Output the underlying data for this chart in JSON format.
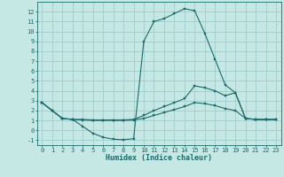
{
  "xlabel": "Humidex (Indice chaleur)",
  "background_color": "#c5e8e5",
  "grid_color": "#a0cccc",
  "line_color": "#1a6b6b",
  "xlim": [
    -0.5,
    23.5
  ],
  "ylim": [
    -1.5,
    13.0
  ],
  "xticks": [
    0,
    1,
    2,
    3,
    4,
    5,
    6,
    7,
    8,
    9,
    10,
    11,
    12,
    13,
    14,
    15,
    16,
    17,
    18,
    19,
    20,
    21,
    22,
    23
  ],
  "yticks": [
    -1,
    0,
    1,
    2,
    3,
    4,
    5,
    6,
    7,
    8,
    9,
    10,
    11,
    12
  ],
  "series": [
    {
      "x": [
        0,
        1,
        2,
        3,
        4,
        5,
        6,
        7,
        8,
        9,
        10,
        11,
        12,
        13,
        14,
        15,
        16,
        17,
        18,
        19,
        20,
        21,
        22,
        23
      ],
      "y": [
        2.8,
        2.0,
        1.2,
        1.1,
        0.4,
        -0.3,
        -0.7,
        -0.9,
        -0.95,
        -0.85,
        9.0,
        11.0,
        11.3,
        11.8,
        12.3,
        12.1,
        9.8,
        7.2,
        4.6,
        3.8,
        1.2,
        1.1,
        1.1,
        1.1
      ]
    },
    {
      "x": [
        0,
        1,
        2,
        3,
        4,
        5,
        6,
        7,
        8,
        9,
        10,
        11,
        12,
        13,
        14,
        15,
        16,
        17,
        18,
        19,
        20,
        21,
        22,
        23
      ],
      "y": [
        2.8,
        2.0,
        1.2,
        1.1,
        1.1,
        1.05,
        1.05,
        1.05,
        1.05,
        1.1,
        1.5,
        2.0,
        2.4,
        2.8,
        3.2,
        4.5,
        4.3,
        4.0,
        3.5,
        3.8,
        1.2,
        1.1,
        1.1,
        1.1
      ]
    },
    {
      "x": [
        0,
        1,
        2,
        3,
        4,
        5,
        6,
        7,
        8,
        9,
        10,
        11,
        12,
        13,
        14,
        15,
        16,
        17,
        18,
        19,
        20,
        21,
        22,
        23
      ],
      "y": [
        2.8,
        2.0,
        1.2,
        1.1,
        1.05,
        1.0,
        1.0,
        1.0,
        1.0,
        1.05,
        1.2,
        1.5,
        1.8,
        2.1,
        2.4,
        2.8,
        2.7,
        2.5,
        2.2,
        2.0,
        1.2,
        1.1,
        1.1,
        1.1
      ]
    }
  ],
  "xlabel_fontsize": 6,
  "tick_fontsize": 5,
  "linewidth": 0.8,
  "markersize": 1.8
}
